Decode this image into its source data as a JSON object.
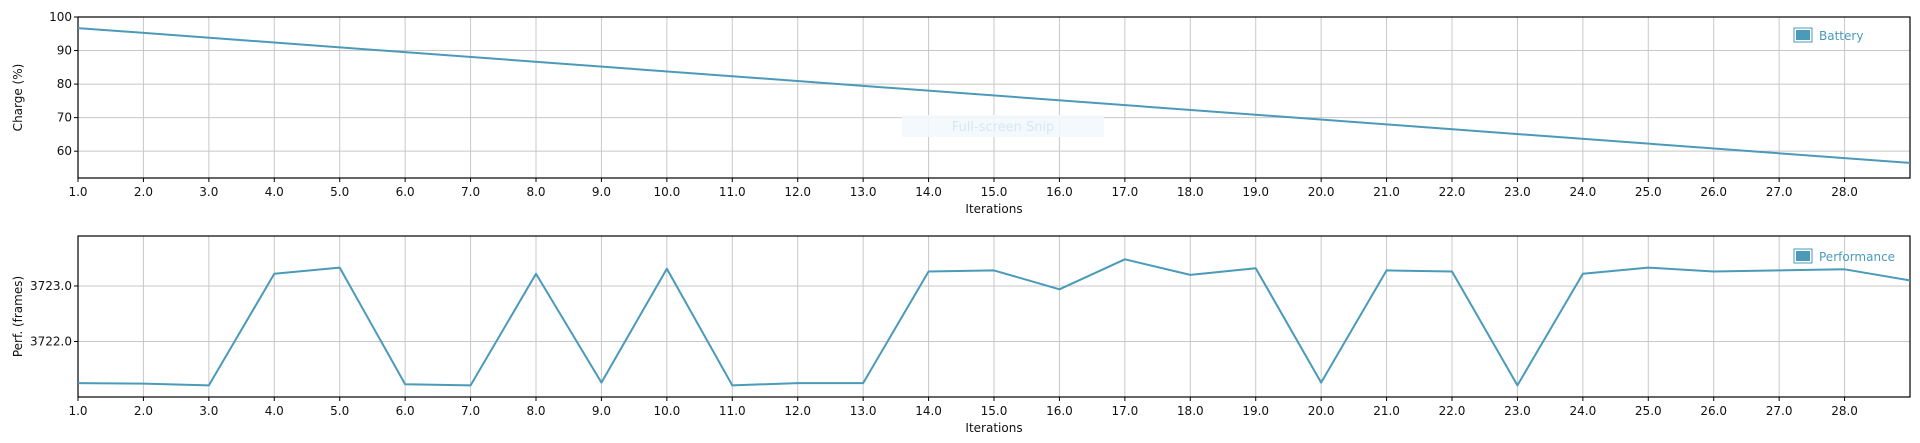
{
  "colors": {
    "series": "#4a9aba",
    "legend_swatch": "#4a9aba",
    "grid": "#c8c8c8",
    "frame": "#000000",
    "overlay_fill": "#f2f8fc",
    "overlay_text": "#d6e8f2"
  },
  "overlay": {
    "label": "Full-screen Snip"
  },
  "chart_data": [
    {
      "type": "line",
      "xlabel": "Iterations",
      "ylabel": "Charge (%)",
      "xlim": [
        1,
        29
      ],
      "ylim": [
        52,
        100
      ],
      "x_ticks": [
        1,
        2,
        3,
        4,
        5,
        6,
        7,
        8,
        9,
        10,
        11,
        12,
        13,
        14,
        15,
        16,
        17,
        18,
        19,
        20,
        21,
        22,
        23,
        24,
        25,
        26,
        27,
        28
      ],
      "x_tick_labels": [
        "1.0",
        "2.0",
        "3.0",
        "4.0",
        "5.0",
        "6.0",
        "7.0",
        "8.0",
        "9.0",
        "10.0",
        "11.0",
        "12.0",
        "13.0",
        "14.0",
        "15.0",
        "16.0",
        "17.0",
        "18.0",
        "19.0",
        "20.0",
        "21.0",
        "22.0",
        "23.0",
        "24.0",
        "25.0",
        "26.0",
        "27.0",
        "28.0"
      ],
      "y_ticks": [
        60,
        70,
        80,
        90,
        100
      ],
      "y_tick_labels": [
        "60",
        "70",
        "80",
        "90",
        "100"
      ],
      "grid": true,
      "legend_position": "top-right",
      "series": [
        {
          "name": "Battery",
          "x": [
            1,
            29
          ],
          "y": [
            96.7,
            56.5
          ]
        }
      ]
    },
    {
      "type": "line",
      "xlabel": "Iterations",
      "ylabel": "Perf. (frames)",
      "xlim": [
        1,
        29
      ],
      "ylim": [
        3721.0,
        3723.9
      ],
      "x_ticks": [
        1,
        2,
        3,
        4,
        5,
        6,
        7,
        8,
        9,
        10,
        11,
        12,
        13,
        14,
        15,
        16,
        17,
        18,
        19,
        20,
        21,
        22,
        23,
        24,
        25,
        26,
        27,
        28
      ],
      "x_tick_labels": [
        "1.0",
        "2.0",
        "3.0",
        "4.0",
        "5.0",
        "6.0",
        "7.0",
        "8.0",
        "9.0",
        "10.0",
        "11.0",
        "12.0",
        "13.0",
        "14.0",
        "15.0",
        "16.0",
        "17.0",
        "18.0",
        "19.0",
        "20.0",
        "21.0",
        "22.0",
        "23.0",
        "24.0",
        "25.0",
        "26.0",
        "27.0",
        "28.0"
      ],
      "y_ticks": [
        3722.0,
        3723.0
      ],
      "y_tick_labels": [
        "3722.0",
        "3723.0"
      ],
      "grid": true,
      "legend_position": "top-right",
      "series": [
        {
          "name": "Performance",
          "x": [
            1,
            2,
            3,
            4,
            5,
            6,
            7,
            8,
            9,
            10,
            11,
            12,
            13,
            14,
            15,
            16,
            17,
            18,
            19,
            20,
            21,
            22,
            23,
            24,
            25,
            26,
            27,
            28,
            29
          ],
          "y": [
            3721.25,
            3721.24,
            3721.21,
            3723.22,
            3723.33,
            3721.23,
            3721.21,
            3723.22,
            3721.26,
            3723.31,
            3721.21,
            3721.25,
            3721.25,
            3723.26,
            3723.28,
            3722.94,
            3723.48,
            3723.2,
            3723.32,
            3721.26,
            3723.28,
            3723.26,
            3721.21,
            3723.22,
            3723.33,
            3723.26,
            3723.28,
            3723.3,
            3723.1
          ]
        }
      ]
    }
  ]
}
